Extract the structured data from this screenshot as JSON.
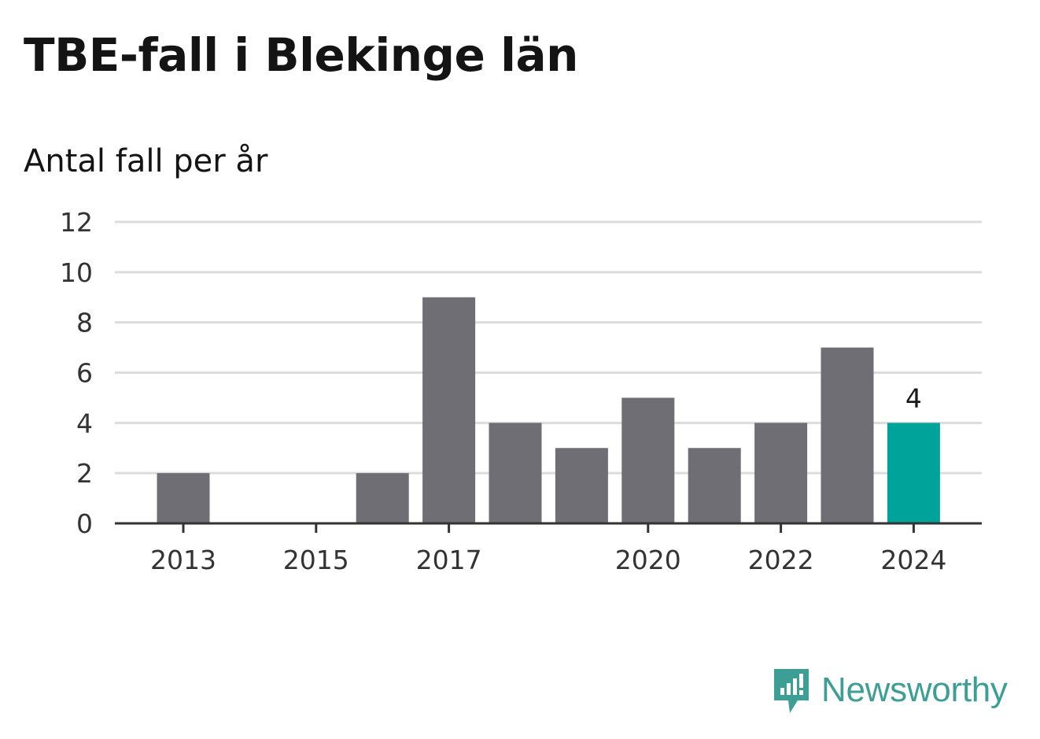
{
  "title": "TBE-fall i Blekinge län",
  "subtitle": "Antal fall per år",
  "brand": {
    "name": "Newsworthy",
    "icon": "newsworthy-logo-icon"
  },
  "colors": {
    "bar": "#6f6e74",
    "highlight": "#00a39a",
    "grid": "#dcdcdc",
    "axis": "#333333",
    "brand": "#3d9e95"
  },
  "chart_data": {
    "type": "bar",
    "x": [
      2013,
      2014,
      2015,
      2016,
      2017,
      2018,
      2019,
      2020,
      2021,
      2022,
      2023,
      2024
    ],
    "values": [
      2,
      0,
      0,
      2,
      9,
      4,
      3,
      5,
      3,
      4,
      7,
      4
    ],
    "x_tick_labels": [
      "2013",
      "2015",
      "2017",
      "2020",
      "2022",
      "2024"
    ],
    "y_ticks": [
      0,
      2,
      4,
      6,
      8,
      10,
      12
    ],
    "ylim": [
      0,
      12
    ],
    "highlight": {
      "x": 2024,
      "label": "4"
    },
    "grid": true,
    "legend": "none"
  }
}
